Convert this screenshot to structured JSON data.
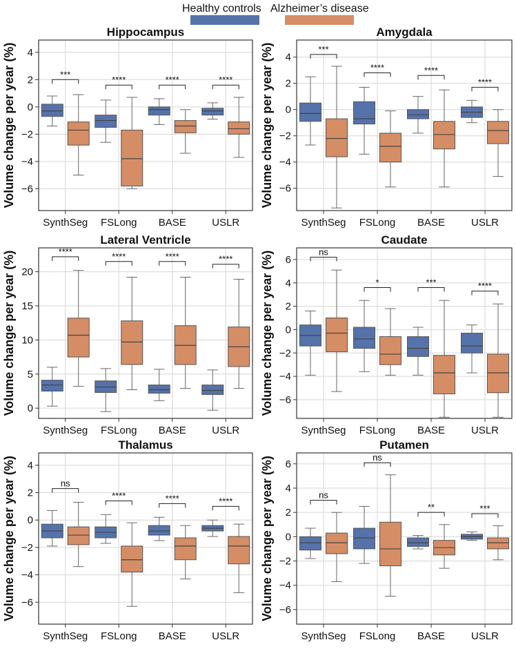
{
  "legend": {
    "healthy_label": "Healthy controls",
    "ad_label": "Alzheimer’s disease"
  },
  "colors": {
    "healthy": "#5572aa",
    "ad": "#d58d66",
    "median": "#444444",
    "whisker": "#666666",
    "grid": "#d6d6d6"
  },
  "chart_data": [
    {
      "type": "box",
      "title": "Hippocampus",
      "ylabel": "Volume change per year (%)",
      "ylim": [
        -7.6,
        4.9
      ],
      "yticks": [
        -6,
        -4,
        -2,
        0,
        2,
        4
      ],
      "categories": [
        "SynthSeg",
        "FSLong",
        "BASE",
        "USLR"
      ],
      "series": [
        {
          "name": "Healthy controls",
          "boxes": [
            {
              "lo": -1.4,
              "q1": -0.7,
              "med": -0.3,
              "q3": 0.2,
              "hi": 0.8
            },
            {
              "lo": -2.6,
              "q1": -1.5,
              "med": -1.0,
              "q3": -0.6,
              "hi": 0.5
            },
            {
              "lo": -1.3,
              "q1": -0.6,
              "med": -0.2,
              "q3": 0.0,
              "hi": 0.6
            },
            {
              "lo": -0.9,
              "q1": -0.6,
              "med": -0.3,
              "q3": -0.1,
              "hi": 0.3
            }
          ]
        },
        {
          "name": "Alzheimer’s disease",
          "boxes": [
            {
              "lo": -5.0,
              "q1": -2.8,
              "med": -1.7,
              "q3": -1.1,
              "hi": 0.9
            },
            {
              "lo": -6.0,
              "q1": -5.8,
              "med": -3.8,
              "q3": -1.7,
              "hi": 0.7
            },
            {
              "lo": -3.4,
              "q1": -1.9,
              "med": -1.4,
              "q3": -1.0,
              "hi": -0.2
            },
            {
              "lo": -3.7,
              "q1": -2.0,
              "med": -1.6,
              "q3": -1.1,
              "hi": 0.7
            }
          ]
        }
      ],
      "significance": [
        "***",
        "****",
        "****",
        "****"
      ],
      "sig_y": [
        2.0,
        1.6,
        1.6,
        1.6
      ]
    },
    {
      "type": "box",
      "title": "Amygdala",
      "ylabel": "Volume change per year (%)",
      "ylim": [
        -7.7,
        5.3
      ],
      "yticks": [
        -6,
        -4,
        -2,
        0,
        2,
        4
      ],
      "categories": [
        "SynthSeg",
        "FSLong",
        "BASE",
        "USLR"
      ],
      "series": [
        {
          "name": "Healthy controls",
          "boxes": [
            {
              "lo": -2.7,
              "q1": -0.9,
              "med": -0.3,
              "q3": 0.5,
              "hi": 2.5
            },
            {
              "lo": -3.4,
              "q1": -1.1,
              "med": -0.7,
              "q3": 0.6,
              "hi": 1.7
            },
            {
              "lo": -1.8,
              "q1": -0.7,
              "med": -0.4,
              "q3": 0.0,
              "hi": 1.0
            },
            {
              "lo": -1.0,
              "q1": -0.6,
              "med": -0.2,
              "q3": 0.2,
              "hi": 0.7
            }
          ]
        },
        {
          "name": "Alzheimer’s disease",
          "boxes": [
            {
              "lo": -7.5,
              "q1": -3.6,
              "med": -2.2,
              "q3": -0.7,
              "hi": 3.3
            },
            {
              "lo": -5.9,
              "q1": -4.0,
              "med": -2.8,
              "q3": -1.8,
              "hi": -0.1
            },
            {
              "lo": -5.9,
              "q1": -3.0,
              "med": -1.9,
              "q3": -0.9,
              "hi": 1.5
            },
            {
              "lo": -5.1,
              "q1": -2.6,
              "med": -1.6,
              "q3": -0.9,
              "hi": 0.0
            }
          ]
        }
      ],
      "significance": [
        "***",
        "****",
        "****",
        "****"
      ],
      "sig_y": [
        4.2,
        2.8,
        2.6,
        1.7
      ]
    },
    {
      "type": "box",
      "title": "Lateral Ventricle",
      "ylabel": "Volume change per year (%)",
      "ylim": [
        -1.5,
        23.5
      ],
      "yticks": [
        0,
        5,
        10,
        15,
        20
      ],
      "categories": [
        "SynthSeg",
        "FSLong",
        "BASE",
        "USLR"
      ],
      "series": [
        {
          "name": "Healthy controls",
          "boxes": [
            {
              "lo": 0.3,
              "q1": 2.5,
              "med": 3.4,
              "q3": 4.1,
              "hi": 6.0
            },
            {
              "lo": -0.5,
              "q1": 2.3,
              "med": 3.1,
              "q3": 4.0,
              "hi": 5.8
            },
            {
              "lo": 1.1,
              "q1": 2.2,
              "med": 2.7,
              "q3": 3.4,
              "hi": 5.7
            },
            {
              "lo": -0.3,
              "q1": 2.0,
              "med": 2.6,
              "q3": 3.4,
              "hi": 5.6
            }
          ]
        },
        {
          "name": "Alzheimer’s disease",
          "boxes": [
            {
              "lo": 3.2,
              "q1": 7.5,
              "med": 10.7,
              "q3": 13.2,
              "hi": 20.2
            },
            {
              "lo": 2.7,
              "q1": 6.4,
              "med": 9.7,
              "q3": 12.8,
              "hi": 19.2
            },
            {
              "lo": 2.9,
              "q1": 6.4,
              "med": 9.2,
              "q3": 12.1,
              "hi": 19.2
            },
            {
              "lo": 2.9,
              "q1": 6.1,
              "med": 9.0,
              "q3": 11.9,
              "hi": 18.9
            }
          ]
        }
      ],
      "significance": [
        "****",
        "****",
        "****",
        "****"
      ],
      "sig_y": [
        22.2,
        21.5,
        21.5,
        21.1
      ]
    },
    {
      "type": "box",
      "title": "Caudate",
      "ylabel": "Volume change per year (%)",
      "ylim": [
        -7.6,
        7.0
      ],
      "yticks": [
        -6,
        -4,
        -2,
        0,
        2,
        4,
        6
      ],
      "categories": [
        "SynthSeg",
        "FSLong",
        "BASE",
        "USLR"
      ],
      "series": [
        {
          "name": "Healthy controls",
          "boxes": [
            {
              "lo": -3.9,
              "q1": -1.4,
              "med": -0.5,
              "q3": 0.4,
              "hi": 1.6
            },
            {
              "lo": -3.6,
              "q1": -1.6,
              "med": -0.8,
              "q3": 0.2,
              "hi": 2.5
            },
            {
              "lo": -3.9,
              "q1": -2.3,
              "med": -1.6,
              "q3": -0.6,
              "hi": 0.2
            },
            {
              "lo": -3.7,
              "q1": -2.0,
              "med": -1.4,
              "q3": -0.3,
              "hi": 0.4
            }
          ]
        },
        {
          "name": "Alzheimer’s disease",
          "boxes": [
            {
              "lo": -5.3,
              "q1": -1.9,
              "med": -0.3,
              "q3": 1.0,
              "hi": 5.1
            },
            {
              "lo": -3.9,
              "q1": -3.0,
              "med": -2.1,
              "q3": -0.6,
              "hi": 1.8
            },
            {
              "lo": -7.5,
              "q1": -5.5,
              "med": -3.7,
              "q3": -2.2,
              "hi": 2.5
            },
            {
              "lo": -7.5,
              "q1": -5.4,
              "med": -3.7,
              "q3": -2.1,
              "hi": 2.2
            }
          ]
        }
      ],
      "significance": [
        "ns",
        "*",
        "***",
        "****"
      ],
      "sig_y": [
        6.2,
        3.6,
        3.6,
        3.3
      ]
    },
    {
      "type": "box",
      "title": "Thalamus",
      "ylabel": "Volume change per year (%)",
      "ylim": [
        -7.6,
        4.9
      ],
      "yticks": [
        -6,
        -4,
        -2,
        0,
        2,
        4
      ],
      "categories": [
        "SynthSeg",
        "FSLong",
        "BASE",
        "USLR"
      ],
      "series": [
        {
          "name": "Healthy controls",
          "boxes": [
            {
              "lo": -1.9,
              "q1": -1.3,
              "med": -0.8,
              "q3": -0.3,
              "hi": 0.7
            },
            {
              "lo": -1.7,
              "q1": -1.3,
              "med": -0.9,
              "q3": -0.5,
              "hi": 0.4
            },
            {
              "lo": -1.5,
              "q1": -1.1,
              "med": -0.8,
              "q3": -0.4,
              "hi": 0.2
            },
            {
              "lo": -1.2,
              "q1": -0.8,
              "med": -0.6,
              "q3": -0.4,
              "hi": 0.0
            }
          ]
        },
        {
          "name": "Alzheimer’s disease",
          "boxes": [
            {
              "lo": -3.4,
              "q1": -1.8,
              "med": -1.1,
              "q3": -0.5,
              "hi": 1.3
            },
            {
              "lo": -6.3,
              "q1": -3.8,
              "med": -2.9,
              "q3": -1.9,
              "hi": -0.2
            },
            {
              "lo": -4.3,
              "q1": -2.9,
              "med": -1.9,
              "q3": -1.3,
              "hi": -0.4
            },
            {
              "lo": -5.3,
              "q1": -3.2,
              "med": -1.9,
              "q3": -1.2,
              "hi": -0.3
            }
          ]
        }
      ],
      "significance": [
        "ns",
        "****",
        "****",
        "****"
      ],
      "sig_y": [
        2.3,
        1.4,
        1.2,
        1.0
      ]
    },
    {
      "type": "box",
      "title": "Putamen",
      "ylabel": "Volume change per year (%)",
      "ylim": [
        -7.2,
        6.9
      ],
      "yticks": [
        -6,
        -4,
        -2,
        0,
        2,
        4,
        6
      ],
      "categories": [
        "SynthSeg",
        "FSLong",
        "BASE",
        "USLR"
      ],
      "series": [
        {
          "name": "Healthy controls",
          "boxes": [
            {
              "lo": -1.8,
              "q1": -1.1,
              "med": -0.5,
              "q3": 0.0,
              "hi": 0.7
            },
            {
              "lo": -2.2,
              "q1": -1.0,
              "med": -0.1,
              "q3": 0.7,
              "hi": 2.5
            },
            {
              "lo": -1.0,
              "q1": -0.8,
              "med": -0.5,
              "q3": -0.1,
              "hi": 0.1
            },
            {
              "lo": -0.3,
              "q1": -0.2,
              "med": 0.0,
              "q3": 0.2,
              "hi": 0.4
            }
          ]
        },
        {
          "name": "Alzheimer’s disease",
          "boxes": [
            {
              "lo": -3.7,
              "q1": -1.4,
              "med": -0.5,
              "q3": 0.3,
              "hi": 2.0
            },
            {
              "lo": -4.9,
              "q1": -2.4,
              "med": -1.0,
              "q3": 1.2,
              "hi": 5.1
            },
            {
              "lo": -2.6,
              "q1": -1.5,
              "med": -0.9,
              "q3": -0.3,
              "hi": 1.0
            },
            {
              "lo": -1.9,
              "q1": -1.0,
              "med": -0.5,
              "q3": -0.1,
              "hi": 0.9
            }
          ]
        }
      ],
      "significance": [
        "ns",
        "ns",
        "**",
        "***"
      ],
      "sig_y": [
        3.0,
        6.1,
        2.0,
        1.9
      ]
    }
  ]
}
